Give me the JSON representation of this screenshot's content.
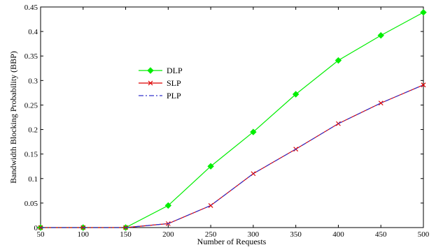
{
  "chart_data": {
    "type": "line",
    "title": "",
    "xlabel": "Number of Requests",
    "ylabel": "Bandwidth Blocking Probability (BBP)",
    "x": [
      50,
      100,
      150,
      200,
      250,
      300,
      350,
      400,
      450,
      500
    ],
    "xlim": [
      50,
      500
    ],
    "ylim": [
      0,
      0.45
    ],
    "xticks": [
      "50",
      "100",
      "150",
      "200",
      "250",
      "300",
      "350",
      "400",
      "450",
      "500"
    ],
    "yticks": [
      "0",
      "0.05",
      "0.1",
      "0.15",
      "0.2",
      "0.25",
      "0.3",
      "0.35",
      "0.4",
      "0.45"
    ],
    "grid": false,
    "legend_position": "center-left",
    "series": [
      {
        "name": "DLP",
        "color": "#00ee00",
        "marker": "diamond",
        "line": "solid",
        "values": [
          0,
          0,
          0,
          0.045,
          0.125,
          0.195,
          0.272,
          0.341,
          0.392,
          0.439
        ]
      },
      {
        "name": "SLP",
        "color": "#dd0000",
        "marker": "x",
        "line": "solid",
        "values": [
          0,
          0,
          0,
          0.008,
          0.045,
          0.11,
          0.16,
          0.212,
          0.254,
          0.291
        ]
      },
      {
        "name": "PLP",
        "color": "#3333cc",
        "marker": "none",
        "line": "dashdot",
        "values": [
          0,
          0,
          0,
          0.008,
          0.045,
          0.11,
          0.16,
          0.212,
          0.254,
          0.291
        ]
      }
    ]
  }
}
